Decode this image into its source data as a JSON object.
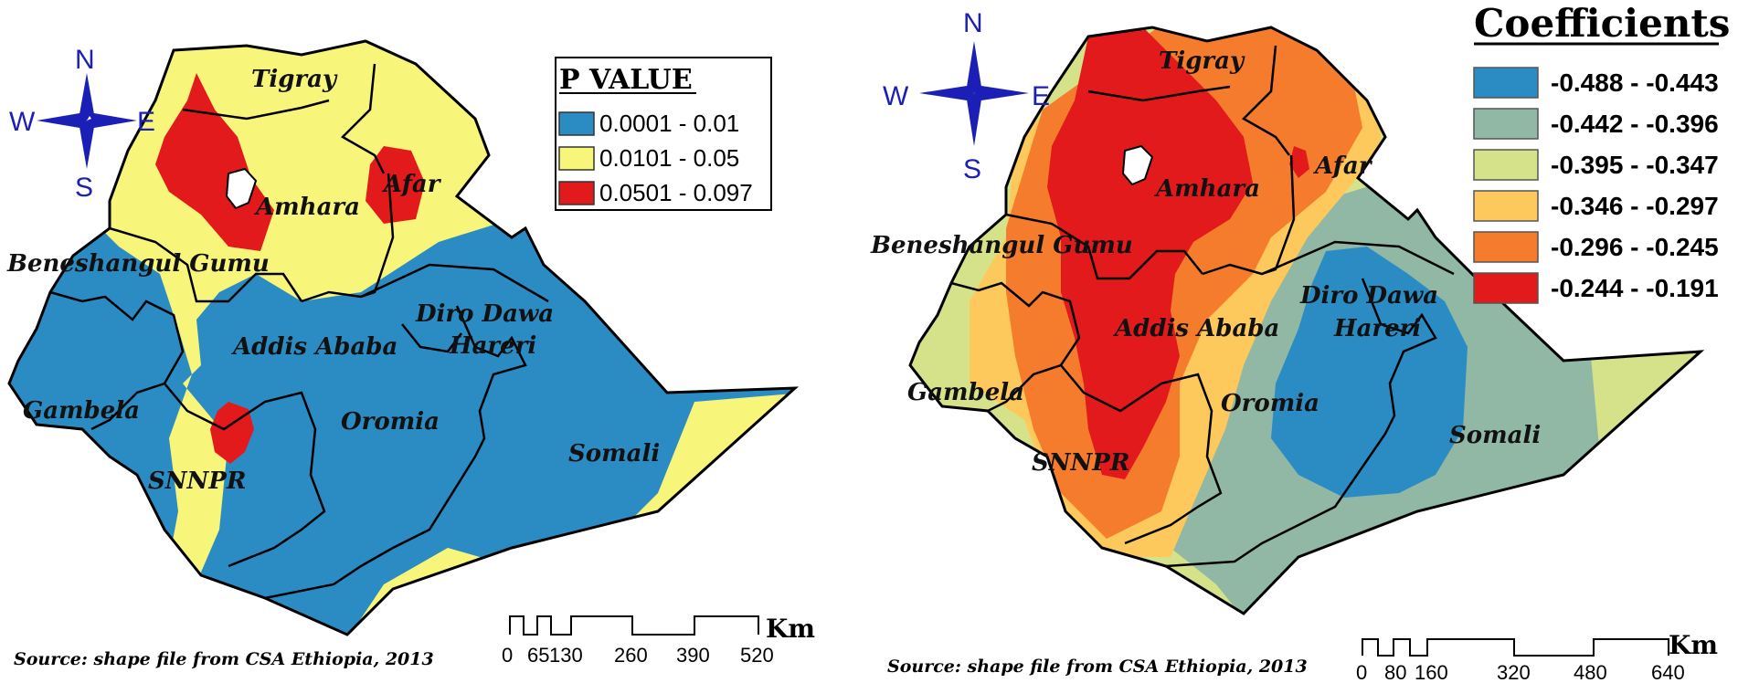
{
  "left_map": {
    "legend": {
      "title": "P   VALUE",
      "items": [
        {
          "label": "0.0001 - 0.01",
          "color": "#2b8cc4"
        },
        {
          "label": "0.0101 - 0.05",
          "color": "#f7f57a"
        },
        {
          "label": "0.0501 - 0.097",
          "color": "#e31a1c"
        }
      ]
    },
    "regions": [
      "Tigray",
      "Afar",
      "Amhara",
      "Beneshangul Gumu",
      "Diro Dawa",
      "Addis Ababa",
      "Hareri",
      "Gambela",
      "Oromia",
      "Somali",
      "SNNPR"
    ],
    "compass": {
      "n": "N",
      "s": "S",
      "e": "E",
      "w": "W"
    },
    "scale": {
      "ticks": [
        "0",
        "65",
        "130",
        "260",
        "390",
        "520"
      ],
      "unit": "Km"
    },
    "source": "Source: shape file from CSA Ethiopia, 2013"
  },
  "right_map": {
    "legend": {
      "title": "Coefficients",
      "items": [
        {
          "label": "-0.488 - -0.443",
          "color": "#2b8cc4"
        },
        {
          "label": "-0.442 - -0.396",
          "color": "#91b8a4"
        },
        {
          "label": "-0.395 - -0.347",
          "color": "#d6e28a"
        },
        {
          "label": "-0.346 - -0.297",
          "color": "#fdc95c"
        },
        {
          "label": "-0.296 - -0.245",
          "color": "#f47c2c"
        },
        {
          "label": "-0.244 - -0.191",
          "color": "#e31a1c"
        }
      ]
    },
    "regions": [
      "Tigray",
      "Afar",
      "Amhara",
      "Beneshangul Gumu",
      "Diro Dawa",
      "Addis Ababa",
      "Hareri",
      "Gambela",
      "Oromia",
      "Somali",
      "SNNPR"
    ],
    "compass": {
      "n": "N",
      "s": "S",
      "e": "E",
      "w": "W"
    },
    "scale": {
      "ticks": [
        "0",
        "80",
        "160",
        "320",
        "480",
        "640"
      ],
      "unit": "Km"
    },
    "source": "Source: shape file from CSA Ethiopia, 2013"
  }
}
